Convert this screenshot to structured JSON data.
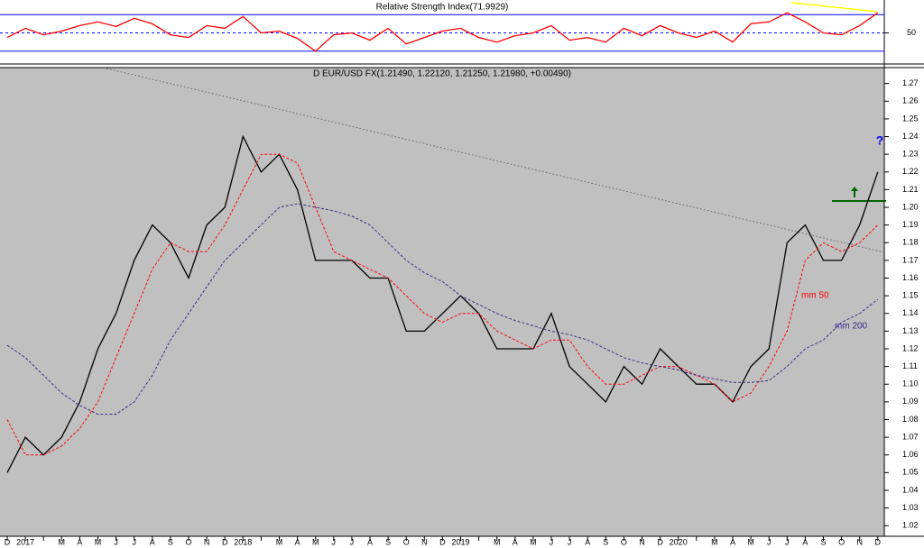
{
  "chart_data": [
    {
      "type": "line",
      "title": "Relative Strength Index(71.9929)",
      "categories": [
        "D",
        "2017",
        null,
        "M",
        "A",
        "M",
        "J",
        "J",
        "A",
        "S",
        "O",
        "N",
        "D",
        "2018",
        null,
        "M",
        "A",
        "M",
        "J",
        "J",
        "A",
        "S",
        "O",
        "N",
        "D",
        "2019",
        null,
        "M",
        "A",
        "M",
        "J",
        "J",
        "A",
        "S",
        "O",
        "N",
        "D",
        "2020",
        null,
        "M",
        "A",
        "M",
        "J",
        "J",
        "A",
        "S",
        "O",
        "N",
        "D"
      ],
      "series": [
        {
          "color": "#ff0000",
          "values": [
            45,
            55,
            48,
            52,
            58,
            62,
            57,
            66,
            60,
            48,
            45,
            58,
            55,
            68,
            50,
            52,
            44,
            30,
            48,
            50,
            42,
            55,
            38,
            45,
            52,
            55,
            45,
            40,
            47,
            50,
            58,
            42,
            45,
            40,
            55,
            47,
            58,
            50,
            45,
            52,
            40,
            60,
            62,
            72,
            62,
            50,
            48,
            58,
            72
          ]
        }
      ],
      "ylim": [
        17,
        86
      ],
      "yticks": [
        50
      ],
      "reference_lines": [
        70,
        30
      ]
    },
    {
      "type": "line",
      "title": "D EUR/USD FX(1.21490, 1.22120, 1.21250, 1.21980, +0.00490)",
      "categories": [
        "D",
        "2017",
        null,
        "M",
        "A",
        "M",
        "J",
        "J",
        "A",
        "S",
        "O",
        "N",
        "D",
        "2018",
        null,
        "M",
        "A",
        "M",
        "J",
        "J",
        "A",
        "S",
        "O",
        "N",
        "D",
        "2019",
        null,
        "M",
        "A",
        "M",
        "J",
        "J",
        "A",
        "S",
        "O",
        "N",
        "D",
        "2020",
        null,
        "M",
        "A",
        "M",
        "J",
        "J",
        "A",
        "S",
        "O",
        "N",
        "D"
      ],
      "series": [
        {
          "color": "#000000",
          "values": [
            1.05,
            1.07,
            1.06,
            1.07,
            1.09,
            1.12,
            1.14,
            1.17,
            1.19,
            1.18,
            1.16,
            1.19,
            1.2,
            1.24,
            1.22,
            1.23,
            1.21,
            1.17,
            1.17,
            1.17,
            1.16,
            1.16,
            1.13,
            1.13,
            1.14,
            1.15,
            1.14,
            1.12,
            1.12,
            1.12,
            1.14,
            1.11,
            1.1,
            1.09,
            1.11,
            1.1,
            1.12,
            1.11,
            1.1,
            1.1,
            1.09,
            1.11,
            1.12,
            1.18,
            1.19,
            1.17,
            1.17,
            1.19,
            1.22
          ]
        },
        {
          "name": "mm 50",
          "color": "#ff0000",
          "dashed": true,
          "values": [
            1.08,
            1.06,
            1.06,
            1.065,
            1.075,
            1.09,
            1.115,
            1.14,
            1.165,
            1.18,
            1.175,
            1.175,
            1.19,
            1.21,
            1.23,
            1.23,
            1.225,
            1.2,
            1.175,
            1.17,
            1.165,
            1.16,
            1.15,
            1.14,
            1.135,
            1.14,
            1.14,
            1.13,
            1.125,
            1.12,
            1.125,
            1.125,
            1.11,
            1.1,
            1.1,
            1.105,
            1.11,
            1.11,
            1.105,
            1.1,
            1.09,
            1.095,
            1.11,
            1.13,
            1.17,
            1.18,
            1.175,
            1.18,
            1.19
          ]
        },
        {
          "name": "mm 200",
          "color": "#3a2a8a",
          "dashed": true,
          "values": [
            1.122,
            1.115,
            1.105,
            1.095,
            1.088,
            1.083,
            1.083,
            1.09,
            1.105,
            1.125,
            1.14,
            1.155,
            1.17,
            1.18,
            1.19,
            1.2,
            1.202,
            1.2,
            1.198,
            1.195,
            1.19,
            1.18,
            1.17,
            1.163,
            1.158,
            1.15,
            1.145,
            1.14,
            1.136,
            1.133,
            1.13,
            1.128,
            1.125,
            1.12,
            1.115,
            1.112,
            1.11,
            1.108,
            1.105,
            1.103,
            1.101,
            1.101,
            1.102,
            1.11,
            1.12,
            1.125,
            1.135,
            1.14,
            1.148
          ]
        }
      ],
      "annotations": [
        "?"
      ],
      "ylim": [
        1.014,
        1.279
      ],
      "yticks": [
        1.02,
        1.03,
        1.04,
        1.05,
        1.06,
        1.07,
        1.08,
        1.09,
        {
          "value": 1.1,
          "label": "1.10"
        },
        1.11,
        1.12,
        1.13,
        1.14,
        1.15,
        1.16,
        1.17,
        1.18,
        1.19,
        {
          "value": 1.2,
          "label": "1.20"
        },
        1.21,
        1.22,
        1.23,
        1.24,
        1.25,
        1.26,
        1.27
      ]
    }
  ]
}
